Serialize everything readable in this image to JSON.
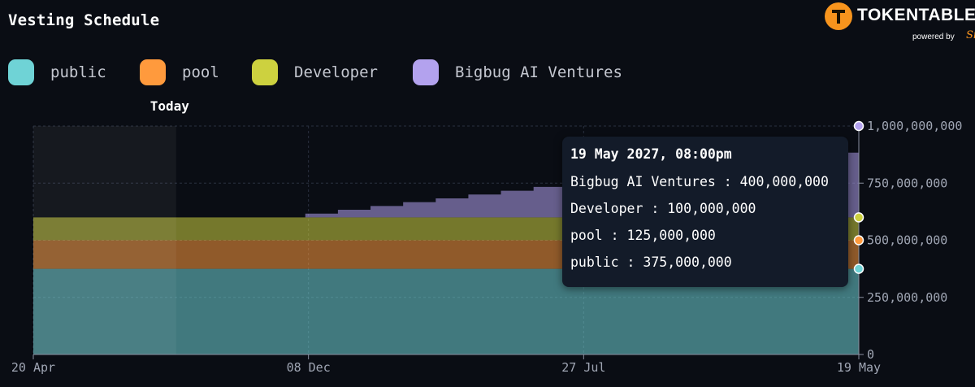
{
  "header": {
    "title": "Vesting Schedule"
  },
  "brand": {
    "name": "TOKENTABLE",
    "powered_by": "powered by",
    "partner": "Sign",
    "logo_icon": "tokentable-logo-icon",
    "color": "#f7941d"
  },
  "legend": [
    {
      "label": "public",
      "color": "#6fd3d6"
    },
    {
      "label": "pool",
      "color": "#ff9a3d"
    },
    {
      "label": "Developer",
      "color": "#cdd13f"
    },
    {
      "label": "Bigbug AI Ventures",
      "color": "#b3a2ee"
    }
  ],
  "today_label": "Today",
  "tooltip": {
    "date": "19 May 2027, 08:00pm",
    "rows": [
      "Bigbug AI Ventures : 400,000,000",
      "Developer : 100,000,000",
      "pool : 125,000,000",
      "public : 375,000,000"
    ]
  },
  "chart_data": {
    "type": "area",
    "stacked": true,
    "step": true,
    "x_tick_labels": [
      "20 Apr",
      "08 Dec",
      "27 Jul",
      "19 May"
    ],
    "y_tick_labels": [
      "0",
      "250,000,000",
      "500,000,000",
      "750,000,000",
      "1,000,000,000"
    ],
    "ylim": [
      0,
      1000000000
    ],
    "grid": true,
    "legend_position": "top-left",
    "today_position_fraction": 0.173,
    "series": [
      {
        "name": "public",
        "color": "#6fd3d6",
        "constant": 375000000
      },
      {
        "name": "pool",
        "color": "#ff9a3d",
        "constant": 125000000
      },
      {
        "name": "Developer",
        "color": "#cdd13f",
        "constant": 100000000
      },
      {
        "name": "Bigbug AI Ventures",
        "color": "#b3a2ee",
        "start_fraction": 0.29,
        "step_fraction": 0.0395,
        "values": [
          0,
          16666667,
          33333333,
          50000000,
          66666667,
          83333333,
          100000000,
          116666667,
          133333333,
          150000000,
          166666667,
          183333333,
          200000000,
          216666667,
          233333333,
          250000000,
          266666667,
          283333333,
          300000000,
          316666667,
          333333333,
          350000000,
          366666667,
          383333333,
          400000000
        ]
      }
    ],
    "cursor_values": {
      "public": 375000000,
      "pool": 500000000,
      "Developer": 600000000,
      "Bigbug AI Ventures": 1000000000
    }
  }
}
